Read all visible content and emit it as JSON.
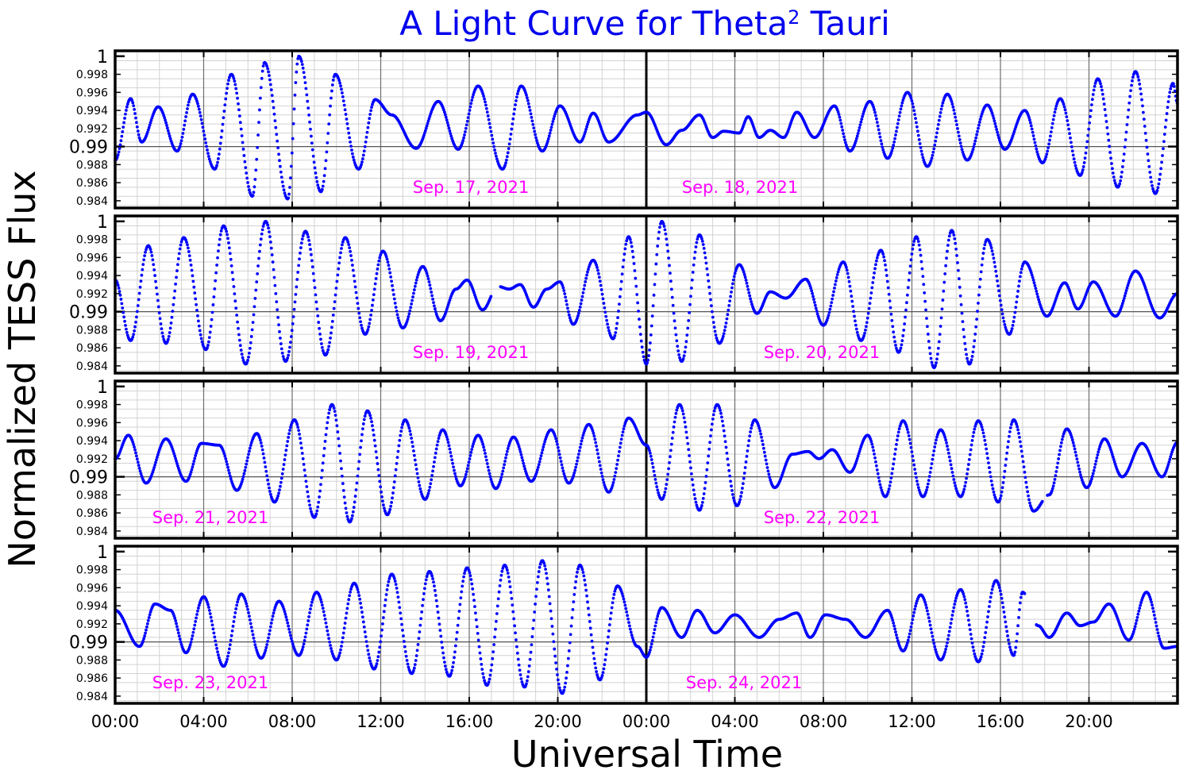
{
  "chart_data": {
    "type": "scatter",
    "title": {
      "main": "A Light Curve for Theta",
      "sup": "2",
      "tail": " Tauri"
    },
    "xlabel": "Universal Time",
    "ylabel": "Normalized TESS Flux",
    "ylim": [
      0.9832,
      1.0006
    ],
    "y_ticks": [
      {
        "value": 1.0,
        "label": "1",
        "major": true
      },
      {
        "value": 0.998,
        "label": "0.998",
        "major": false
      },
      {
        "value": 0.996,
        "label": "0.996",
        "major": false
      },
      {
        "value": 0.994,
        "label": "0.994",
        "major": false
      },
      {
        "value": 0.992,
        "label": "0.992",
        "major": false
      },
      {
        "value": 0.99,
        "label": "0.99",
        "major": true
      },
      {
        "value": 0.988,
        "label": "0.988",
        "major": false
      },
      {
        "value": 0.986,
        "label": "0.986",
        "major": false
      },
      {
        "value": 0.984,
        "label": "0.984",
        "major": false
      }
    ],
    "x_ticks_hours": [
      0,
      4,
      8,
      12,
      16,
      20,
      24,
      28,
      32,
      36,
      40,
      44
    ],
    "x_tick_labels": [
      "00:00",
      "04:00",
      "08:00",
      "12:00",
      "16:00",
      "20:00",
      "00:00",
      "04:00",
      "08:00",
      "12:00",
      "16:00",
      "20:00"
    ],
    "xlim_hours": [
      0,
      48
    ],
    "x_unit": "hours since 00:00 UT of first day in panel",
    "grid": true,
    "marker_color": "#0000ff",
    "label_color": "#ff00ff",
    "title_color": "#0000ee",
    "sample_interval_hours": 0.0333,
    "panels": [
      {
        "date_labels": [
          "Sep. 17, 2021",
          "Sep. 18, 2021"
        ],
        "gaps": [],
        "anchors": [
          [
            0,
            0.9885
          ],
          [
            0.7,
            0.9953
          ],
          [
            1.2,
            0.9905
          ],
          [
            1.95,
            0.9944
          ],
          [
            2.8,
            0.9895
          ],
          [
            3.5,
            0.9958
          ],
          [
            4.5,
            0.9875
          ],
          [
            5.25,
            0.998
          ],
          [
            6.2,
            0.9845
          ],
          [
            6.75,
            0.9993
          ],
          [
            7.8,
            0.9842
          ],
          [
            8.3,
            1.0
          ],
          [
            9.3,
            0.985
          ],
          [
            9.95,
            0.998
          ],
          [
            11.0,
            0.9875
          ],
          [
            11.75,
            0.9952
          ],
          [
            12.5,
            0.9935
          ],
          [
            13.6,
            0.9898
          ],
          [
            14.6,
            0.995
          ],
          [
            15.5,
            0.9897
          ],
          [
            16.4,
            0.9967
          ],
          [
            17.5,
            0.9875
          ],
          [
            18.35,
            0.9967
          ],
          [
            19.3,
            0.9895
          ],
          [
            20.1,
            0.9945
          ],
          [
            21.0,
            0.9905
          ],
          [
            21.6,
            0.9937
          ],
          [
            22.3,
            0.9905
          ],
          [
            23.6,
            0.9935
          ],
          [
            24.0,
            0.9938
          ],
          [
            24.9,
            0.9902
          ],
          [
            25.6,
            0.9918
          ],
          [
            26.4,
            0.9935
          ],
          [
            27.0,
            0.991
          ],
          [
            27.5,
            0.9917
          ],
          [
            28.2,
            0.9915
          ],
          [
            28.6,
            0.9933
          ],
          [
            29.1,
            0.991
          ],
          [
            29.6,
            0.9918
          ],
          [
            30.2,
            0.991
          ],
          [
            30.8,
            0.9938
          ],
          [
            31.6,
            0.991
          ],
          [
            32.5,
            0.9945
          ],
          [
            33.2,
            0.9895
          ],
          [
            34.1,
            0.995
          ],
          [
            34.9,
            0.9887
          ],
          [
            35.8,
            0.996
          ],
          [
            36.7,
            0.9878
          ],
          [
            37.6,
            0.9958
          ],
          [
            38.5,
            0.9885
          ],
          [
            39.4,
            0.9946
          ],
          [
            40.2,
            0.9897
          ],
          [
            41.1,
            0.994
          ],
          [
            41.9,
            0.9882
          ],
          [
            42.7,
            0.9953
          ],
          [
            43.6,
            0.9868
          ],
          [
            44.4,
            0.9975
          ],
          [
            45.3,
            0.9855
          ],
          [
            46.1,
            0.9983
          ],
          [
            47.0,
            0.9848
          ],
          [
            47.8,
            0.997
          ],
          [
            48.0,
            0.9948
          ]
        ]
      },
      {
        "date_labels": [
          "Sep. 19, 2021",
          "Sep. 20, 2021"
        ],
        "gaps": [
          [
            17.0,
            17.4
          ]
        ],
        "anchors": [
          [
            0,
            0.9935
          ],
          [
            0.7,
            0.9868
          ],
          [
            1.5,
            0.9973
          ],
          [
            2.3,
            0.9865
          ],
          [
            3.1,
            0.9982
          ],
          [
            4.1,
            0.9858
          ],
          [
            4.9,
            0.9995
          ],
          [
            5.9,
            0.9842
          ],
          [
            6.8,
            1.0
          ],
          [
            7.7,
            0.9845
          ],
          [
            8.6,
            0.9989
          ],
          [
            9.5,
            0.9852
          ],
          [
            10.4,
            0.9982
          ],
          [
            11.3,
            0.9875
          ],
          [
            12.1,
            0.9967
          ],
          [
            13.0,
            0.9882
          ],
          [
            13.9,
            0.995
          ],
          [
            14.7,
            0.989
          ],
          [
            15.4,
            0.9925
          ],
          [
            15.9,
            0.9935
          ],
          [
            16.6,
            0.9902
          ],
          [
            17.3,
            0.9928
          ],
          [
            17.8,
            0.9925
          ],
          [
            18.3,
            0.993
          ],
          [
            18.9,
            0.9905
          ],
          [
            19.5,
            0.9925
          ],
          [
            20.1,
            0.9933
          ],
          [
            20.7,
            0.9886
          ],
          [
            21.6,
            0.9957
          ],
          [
            22.5,
            0.987
          ],
          [
            23.2,
            0.9983
          ],
          [
            24.0,
            0.9842
          ],
          [
            24.7,
            1.0
          ],
          [
            25.6,
            0.9845
          ],
          [
            26.4,
            0.9985
          ],
          [
            27.3,
            0.9865
          ],
          [
            28.2,
            0.9952
          ],
          [
            29.0,
            0.9898
          ],
          [
            29.6,
            0.9922
          ],
          [
            30.3,
            0.9915
          ],
          [
            31.2,
            0.9936
          ],
          [
            32.0,
            0.9885
          ],
          [
            32.9,
            0.9955
          ],
          [
            33.7,
            0.9868
          ],
          [
            34.6,
            0.9968
          ],
          [
            35.4,
            0.9855
          ],
          [
            36.2,
            0.9983
          ],
          [
            37.0,
            0.9838
          ],
          [
            37.8,
            0.999
          ],
          [
            38.6,
            0.9842
          ],
          [
            39.4,
            0.998
          ],
          [
            40.4,
            0.9875
          ],
          [
            41.1,
            0.9955
          ],
          [
            42.1,
            0.9895
          ],
          [
            42.9,
            0.9932
          ],
          [
            43.5,
            0.9903
          ],
          [
            44.2,
            0.9933
          ],
          [
            45.2,
            0.9895
          ],
          [
            46.1,
            0.9945
          ],
          [
            47.2,
            0.9893
          ],
          [
            48.0,
            0.992
          ]
        ]
      },
      {
        "date_labels": [
          "Sep. 21, 2021",
          "Sep. 22, 2021"
        ],
        "gaps": [
          [
            41.9,
            42.1
          ]
        ],
        "anchors": [
          [
            0,
            0.992
          ],
          [
            0.6,
            0.9946
          ],
          [
            1.4,
            0.9893
          ],
          [
            2.3,
            0.9942
          ],
          [
            3.2,
            0.9895
          ],
          [
            3.9,
            0.9937
          ],
          [
            4.7,
            0.9935
          ],
          [
            5.5,
            0.9885
          ],
          [
            6.4,
            0.9948
          ],
          [
            7.2,
            0.9872
          ],
          [
            8.1,
            0.9963
          ],
          [
            9.0,
            0.9855
          ],
          [
            9.8,
            0.998
          ],
          [
            10.6,
            0.985
          ],
          [
            11.4,
            0.9973
          ],
          [
            12.3,
            0.9858
          ],
          [
            13.1,
            0.9963
          ],
          [
            14.0,
            0.9875
          ],
          [
            14.8,
            0.9952
          ],
          [
            15.6,
            0.989
          ],
          [
            16.4,
            0.9946
          ],
          [
            17.2,
            0.9887
          ],
          [
            18.0,
            0.9944
          ],
          [
            18.8,
            0.9895
          ],
          [
            19.7,
            0.9952
          ],
          [
            20.5,
            0.9893
          ],
          [
            21.4,
            0.9958
          ],
          [
            22.3,
            0.9883
          ],
          [
            23.2,
            0.9965
          ],
          [
            24.0,
            0.9935
          ],
          [
            24.7,
            0.9875
          ],
          [
            25.5,
            0.998
          ],
          [
            26.4,
            0.9863
          ],
          [
            27.2,
            0.998
          ],
          [
            28.1,
            0.9868
          ],
          [
            28.9,
            0.9963
          ],
          [
            29.8,
            0.9888
          ],
          [
            30.6,
            0.9925
          ],
          [
            31.3,
            0.9928
          ],
          [
            31.8,
            0.992
          ],
          [
            32.4,
            0.993
          ],
          [
            33.2,
            0.9905
          ],
          [
            34.0,
            0.9946
          ],
          [
            34.8,
            0.9878
          ],
          [
            35.6,
            0.9962
          ],
          [
            36.5,
            0.9878
          ],
          [
            37.3,
            0.9952
          ],
          [
            38.2,
            0.9878
          ],
          [
            39.0,
            0.9962
          ],
          [
            39.9,
            0.9872
          ],
          [
            40.6,
            0.9963
          ],
          [
            41.5,
            0.9862
          ],
          [
            42.2,
            0.988
          ],
          [
            43.0,
            0.9953
          ],
          [
            43.9,
            0.9888
          ],
          [
            44.7,
            0.9942
          ],
          [
            45.5,
            0.99
          ],
          [
            46.4,
            0.9937
          ],
          [
            47.3,
            0.99
          ],
          [
            48.0,
            0.9938
          ]
        ]
      },
      {
        "date_labels": [
          "Sep. 23, 2021",
          "Sep. 24, 2021"
        ],
        "gaps": [
          [
            41.1,
            41.6
          ]
        ],
        "anchors": [
          [
            0,
            0.9935
          ],
          [
            1.1,
            0.9895
          ],
          [
            1.8,
            0.9942
          ],
          [
            2.5,
            0.9935
          ],
          [
            3.2,
            0.9888
          ],
          [
            4.0,
            0.995
          ],
          [
            4.9,
            0.9873
          ],
          [
            5.7,
            0.9953
          ],
          [
            6.6,
            0.9882
          ],
          [
            7.4,
            0.9945
          ],
          [
            8.3,
            0.9885
          ],
          [
            9.1,
            0.9955
          ],
          [
            10.0,
            0.988
          ],
          [
            10.8,
            0.9965
          ],
          [
            11.7,
            0.987
          ],
          [
            12.5,
            0.9975
          ],
          [
            13.4,
            0.9865
          ],
          [
            14.2,
            0.9978
          ],
          [
            15.1,
            0.9862
          ],
          [
            15.9,
            0.9982
          ],
          [
            16.8,
            0.9852
          ],
          [
            17.6,
            0.9985
          ],
          [
            18.5,
            0.985
          ],
          [
            19.3,
            0.999
          ],
          [
            20.2,
            0.9843
          ],
          [
            21.0,
            0.9985
          ],
          [
            21.9,
            0.9858
          ],
          [
            22.7,
            0.9962
          ],
          [
            23.6,
            0.9895
          ],
          [
            24.0,
            0.9883
          ],
          [
            24.7,
            0.9938
          ],
          [
            25.6,
            0.9905
          ],
          [
            26.3,
            0.9935
          ],
          [
            27.1,
            0.991
          ],
          [
            28.0,
            0.993
          ],
          [
            29.1,
            0.9905
          ],
          [
            30.0,
            0.9925
          ],
          [
            30.8,
            0.9932
          ],
          [
            31.4,
            0.9905
          ],
          [
            32.1,
            0.993
          ],
          [
            33.0,
            0.9925
          ],
          [
            33.9,
            0.9905
          ],
          [
            34.9,
            0.9935
          ],
          [
            35.6,
            0.989
          ],
          [
            36.4,
            0.9952
          ],
          [
            37.3,
            0.988
          ],
          [
            38.2,
            0.9958
          ],
          [
            39.0,
            0.9878
          ],
          [
            39.8,
            0.9968
          ],
          [
            40.6,
            0.9885
          ],
          [
            41.0,
            0.9955
          ],
          [
            41.7,
            0.9918
          ],
          [
            42.2,
            0.9905
          ],
          [
            43.0,
            0.9932
          ],
          [
            43.6,
            0.9918
          ],
          [
            44.2,
            0.9922
          ],
          [
            44.9,
            0.9942
          ],
          [
            45.8,
            0.9902
          ],
          [
            46.6,
            0.9955
          ],
          [
            47.4,
            0.9893
          ],
          [
            48.0,
            0.9895
          ]
        ]
      }
    ]
  }
}
